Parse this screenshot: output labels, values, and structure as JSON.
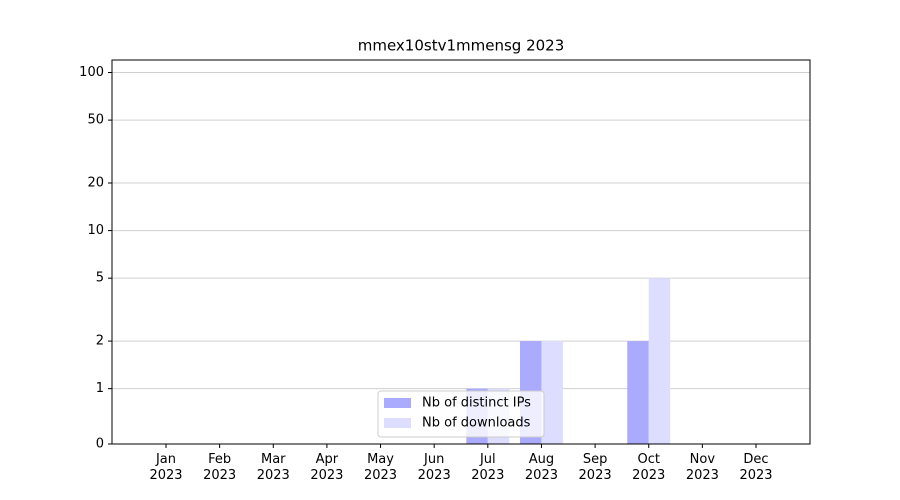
{
  "chart_data": {
    "type": "bar",
    "title": "mmex10stv1mmensg 2023",
    "categories": [
      "Jan\n2023",
      "Feb\n2023",
      "Mar\n2023",
      "Apr\n2023",
      "May\n2023",
      "Jun\n2023",
      "Jul\n2023",
      "Aug\n2023",
      "Sep\n2023",
      "Oct\n2023",
      "Nov\n2023",
      "Dec\n2023"
    ],
    "series": [
      {
        "name": "Nb of distinct IPs",
        "color": "#aaaaff",
        "values": [
          0,
          0,
          0,
          0,
          0,
          0,
          1,
          2,
          0,
          2,
          0,
          0
        ]
      },
      {
        "name": "Nb of downloads",
        "color": "#ddddff",
        "values": [
          0,
          0,
          0,
          0,
          0,
          0,
          1,
          2,
          0,
          5,
          0,
          0
        ]
      }
    ],
    "yscale": "symlog",
    "linthresh": 1,
    "linscale": 0.35,
    "ylim": [
      0,
      120
    ],
    "yticks": [
      0,
      1,
      2,
      5,
      10,
      20,
      50,
      100
    ],
    "grid": true,
    "legend": "lower center"
  }
}
